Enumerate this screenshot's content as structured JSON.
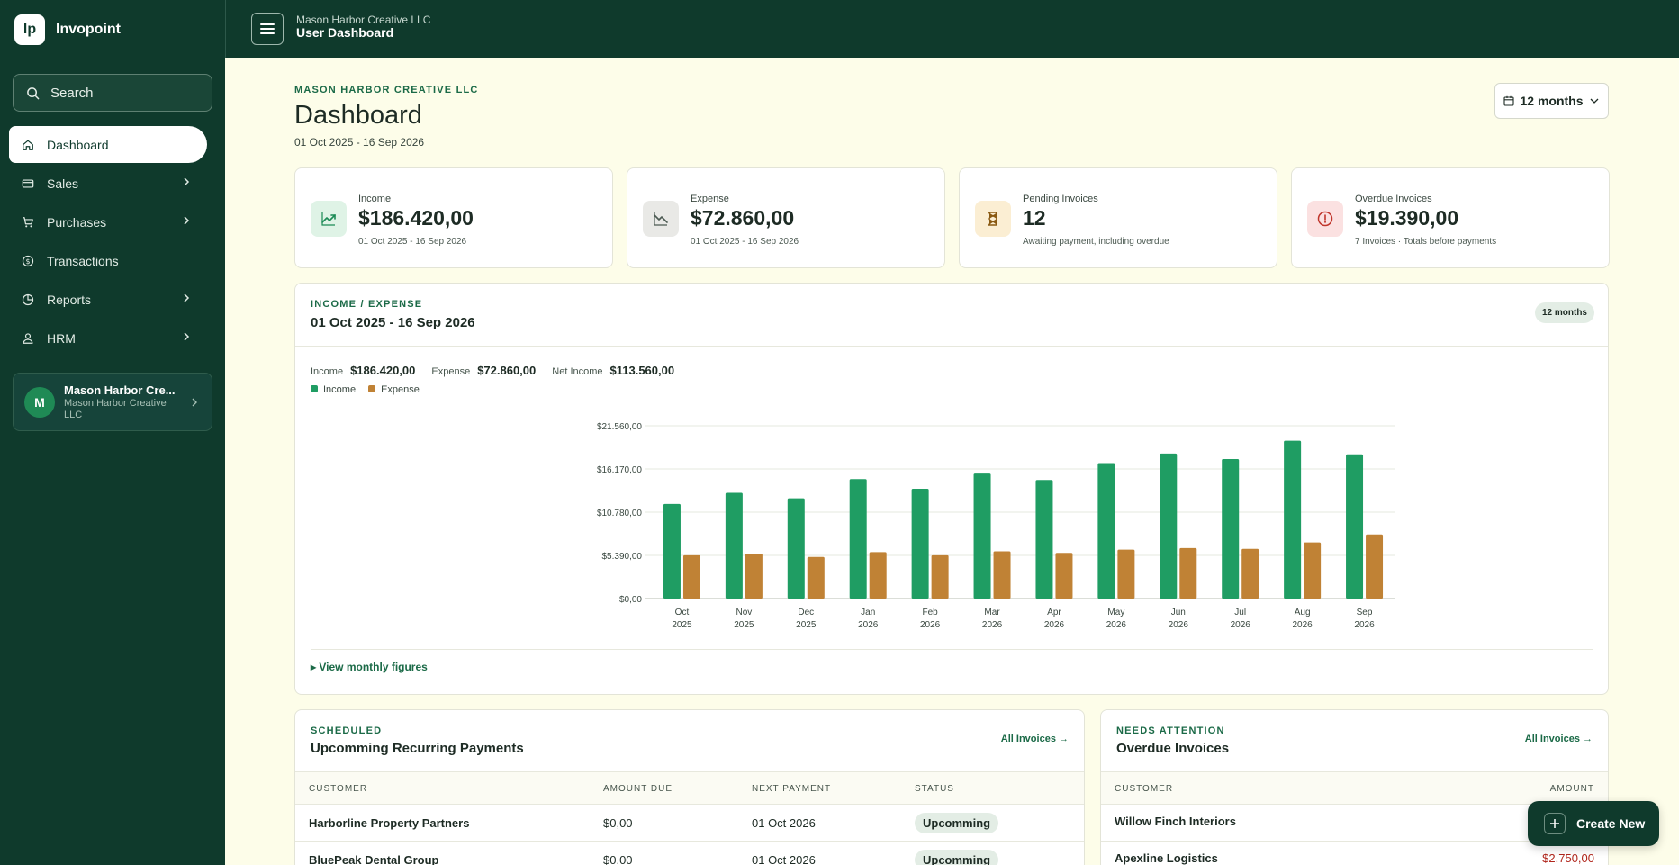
{
  "app": {
    "name": "Invopoint",
    "logo_text": "lp"
  },
  "sidebar": {
    "search_label": "Search",
    "items": [
      {
        "label": "Dashboard",
        "icon": "home-icon",
        "active": true,
        "has_children": false
      },
      {
        "label": "Sales",
        "icon": "card-icon",
        "active": false,
        "has_children": true
      },
      {
        "label": "Purchases",
        "icon": "cart-icon",
        "active": false,
        "has_children": true
      },
      {
        "label": "Transactions",
        "icon": "dollar-icon",
        "active": false,
        "has_children": false
      },
      {
        "label": "Reports",
        "icon": "pie-icon",
        "active": false,
        "has_children": true
      },
      {
        "label": "HRM",
        "icon": "person-icon",
        "active": false,
        "has_children": true
      }
    ],
    "user": {
      "initial": "M",
      "name": "Mason Harbor Cre...",
      "org": "Mason Harbor Creative LLC"
    }
  },
  "topbar": {
    "org": "Mason Harbor Creative LLC",
    "title": "User Dashboard"
  },
  "page": {
    "eyebrow": "MASON HARBOR CREATIVE LLC",
    "title": "Dashboard",
    "range": "01 Oct 2025 - 16 Sep 2026",
    "period": "12 months"
  },
  "stats": [
    {
      "label": "Income",
      "value": "$186.420,00",
      "sub": "01 Oct 2025 - 16 Sep 2026",
      "icon": "trend-up-icon",
      "icon_bg": "#dff3e6",
      "icon_color": "#1b8a55"
    },
    {
      "label": "Expense",
      "value": "$72.860,00",
      "sub": "01 Oct 2025 - 16 Sep 2026",
      "icon": "trend-down-icon",
      "icon_bg": "#e9e9e6",
      "icon_color": "#4c5a52"
    },
    {
      "label": "Pending Invoices",
      "value": "12",
      "sub": "Awaiting payment, including overdue",
      "icon": "hourglass-icon",
      "icon_bg": "#fbeed3",
      "icon_color": "#8a5a13"
    },
    {
      "label": "Overdue Invoices",
      "value": "$19.390,00",
      "sub": "7 Invoices · Totals before payments",
      "icon": "alert-icon",
      "icon_bg": "#fbe1e1",
      "icon_color": "#c0362c"
    }
  ],
  "chart_section": {
    "eyebrow": "INCOME / EXPENSE",
    "title": "01 Oct 2025 - 16 Sep 2026",
    "badge": "12 months",
    "totals": [
      {
        "label": "Income",
        "value": "$186.420,00"
      },
      {
        "label": "Expense",
        "value": "$72.860,00"
      },
      {
        "label": "Net Income",
        "value": "$113.560,00"
      }
    ],
    "view_monthly": "View monthly figures"
  },
  "chart_data": {
    "type": "bar",
    "categories": [
      "Oct 2025",
      "Nov 2025",
      "Dec 2025",
      "Jan 2026",
      "Feb 2026",
      "Mar 2026",
      "Apr 2026",
      "May 2026",
      "Jun 2026",
      "Jul 2026",
      "Aug 2026",
      "Sep 2026"
    ],
    "series": [
      {
        "name": "Income",
        "color": "#1f9d63",
        "values": [
          11800,
          13200,
          12500,
          14900,
          13700,
          15600,
          14800,
          16900,
          18100,
          17400,
          19700,
          18000
        ]
      },
      {
        "name": "Expense",
        "color": "#c08235",
        "values": [
          5400,
          5600,
          5200,
          5800,
          5400,
          5900,
          5700,
          6100,
          6300,
          6200,
          7000,
          8000
        ]
      }
    ],
    "yticks": [
      "$0,00",
      "$5.390,00",
      "$10.780,00",
      "$16.170,00",
      "$21.560,00"
    ],
    "ylim": [
      0,
      21560
    ],
    "grid": true,
    "legend": "top-left"
  },
  "recurring": {
    "eyebrow": "SCHEDULED",
    "title": "Upcomming Recurring Payments",
    "link": "All Invoices →",
    "columns": [
      "CUSTOMER",
      "AMOUNT DUE",
      "NEXT PAYMENT",
      "STATUS"
    ],
    "rows": [
      {
        "customer": "Harborline Property Partners",
        "amount": "$0,00",
        "next": "01 Oct 2026",
        "status": "Upcomming"
      },
      {
        "customer": "BluePeak Dental Group",
        "amount": "$0,00",
        "next": "01 Oct 2026",
        "status": "Upcomming"
      }
    ]
  },
  "overdue": {
    "eyebrow": "NEEDS ATTENTION",
    "title": "Overdue Invoices",
    "link": "All Invoices →",
    "columns": [
      "CUSTOMER",
      "AMOUNT"
    ],
    "rows": [
      {
        "customer": "Willow Finch Interiors",
        "amount": ""
      },
      {
        "customer": "Apexline Logistics",
        "amount": "$2.750,00"
      }
    ]
  },
  "fab": {
    "label": "Create New"
  }
}
